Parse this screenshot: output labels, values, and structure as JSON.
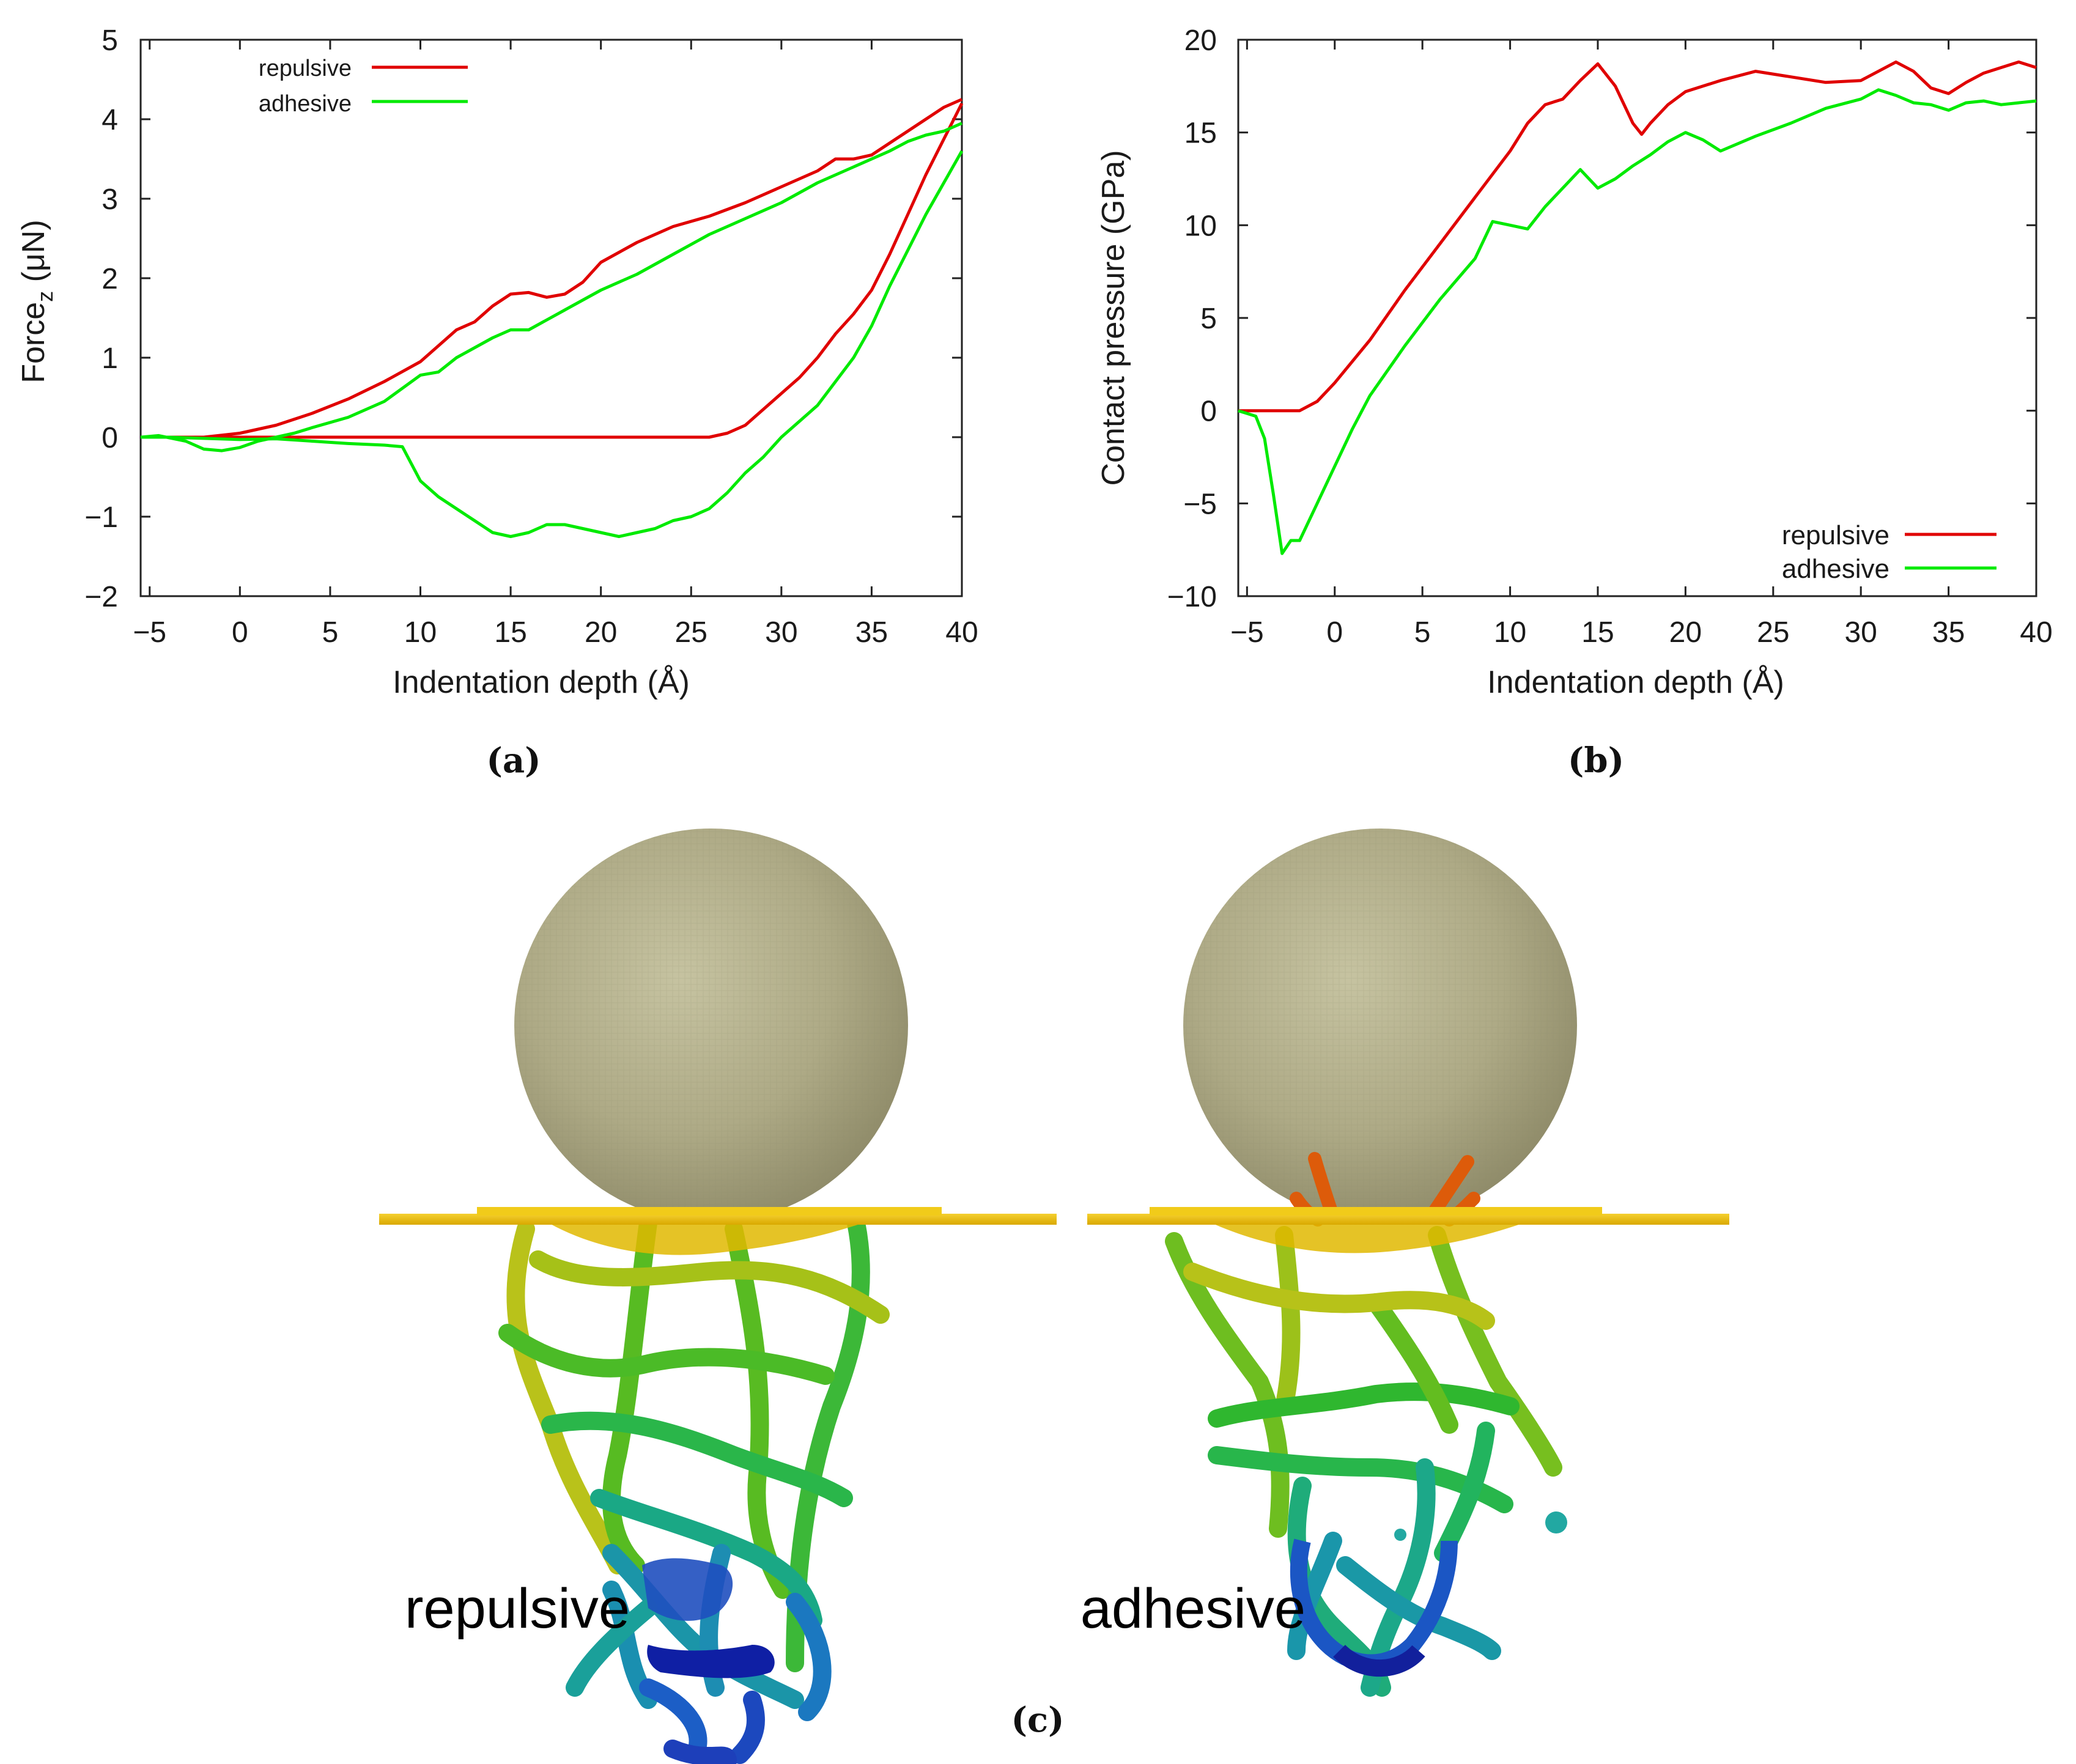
{
  "chart_data": [
    {
      "id": "a",
      "type": "line",
      "caption": "(a)",
      "xlabel": "Indentation depth (Å)",
      "ylabel_main": "Force",
      "ylabel_sub": "z",
      "ylabel_unit": " (μN)",
      "xlim": [
        -5.5,
        40
      ],
      "ylim": [
        -2,
        5
      ],
      "xticks": [
        -5,
        0,
        5,
        10,
        15,
        20,
        25,
        30,
        35,
        40
      ],
      "xtick_labels": [
        "−5",
        "0",
        "5",
        "10",
        "15",
        "20",
        "25",
        "30",
        "35",
        "40"
      ],
      "yticks": [
        -2,
        -1,
        0,
        1,
        2,
        3,
        4,
        5
      ],
      "ytick_labels": [
        "−2",
        "−1",
        "0",
        "1",
        "2",
        "3",
        "4",
        "5"
      ],
      "legend_position": "top-left",
      "series": [
        {
          "name": "repulsive",
          "color": "#e00000",
          "segments": [
            [
              [
                -5.5,
                0
              ],
              [
                -2,
                0
              ],
              [
                0,
                0.05
              ],
              [
                2,
                0.15
              ],
              [
                4,
                0.3
              ],
              [
                6,
                0.48
              ],
              [
                8,
                0.7
              ],
              [
                10,
                0.95
              ],
              [
                12,
                1.35
              ],
              [
                13,
                1.45
              ],
              [
                14,
                1.65
              ],
              [
                15,
                1.8
              ],
              [
                16,
                1.82
              ],
              [
                17,
                1.76
              ],
              [
                18,
                1.8
              ],
              [
                19,
                1.95
              ],
              [
                20,
                2.2
              ],
              [
                22,
                2.45
              ],
              [
                24,
                2.65
              ],
              [
                26,
                2.78
              ],
              [
                28,
                2.95
              ],
              [
                30,
                3.15
              ],
              [
                32,
                3.35
              ],
              [
                33,
                3.5
              ],
              [
                34,
                3.5
              ],
              [
                35,
                3.55
              ],
              [
                36,
                3.7
              ],
              [
                37,
                3.85
              ],
              [
                38,
                4.0
              ],
              [
                39,
                4.15
              ],
              [
                40,
                4.25
              ]
            ],
            [
              [
                -2,
                0
              ],
              [
                26,
                0
              ],
              [
                27,
                0.05
              ],
              [
                28,
                0.15
              ],
              [
                29,
                0.35
              ],
              [
                30,
                0.55
              ],
              [
                31,
                0.75
              ],
              [
                32,
                1.0
              ],
              [
                33,
                1.3
              ],
              [
                34,
                1.55
              ],
              [
                35,
                1.85
              ],
              [
                36,
                2.3
              ],
              [
                37,
                2.8
              ],
              [
                38,
                3.3
              ],
              [
                39,
                3.75
              ],
              [
                40,
                4.2
              ]
            ]
          ]
        },
        {
          "name": "adhesive",
          "color": "#00ea00",
          "segments": [
            [
              [
                -5.5,
                0
              ],
              [
                -4.5,
                0.02
              ],
              [
                -3,
                -0.05
              ],
              [
                -2,
                -0.15
              ],
              [
                -1,
                -0.17
              ],
              [
                0,
                -0.13
              ],
              [
                1,
                -0.05
              ],
              [
                2,
                0.0
              ],
              [
                3,
                0.05
              ],
              [
                4,
                0.12
              ],
              [
                6,
                0.25
              ],
              [
                8,
                0.45
              ],
              [
                10,
                0.78
              ],
              [
                11,
                0.82
              ],
              [
                12,
                1.0
              ],
              [
                14,
                1.25
              ],
              [
                15,
                1.35
              ],
              [
                16,
                1.35
              ],
              [
                18,
                1.6
              ],
              [
                20,
                1.85
              ],
              [
                22,
                2.05
              ],
              [
                24,
                2.3
              ],
              [
                26,
                2.55
              ],
              [
                28,
                2.75
              ],
              [
                30,
                2.95
              ],
              [
                32,
                3.2
              ],
              [
                34,
                3.4
              ],
              [
                36,
                3.6
              ],
              [
                37,
                3.72
              ],
              [
                38,
                3.8
              ],
              [
                39,
                3.85
              ],
              [
                40,
                3.95
              ]
            ],
            [
              [
                -5.5,
                0
              ],
              [
                -4,
                0
              ],
              [
                0,
                -0.03
              ],
              [
                2,
                -0.02
              ],
              [
                4,
                -0.05
              ],
              [
                6,
                -0.08
              ],
              [
                8,
                -0.1
              ],
              [
                9,
                -0.12
              ],
              [
                10,
                -0.55
              ],
              [
                11,
                -0.75
              ],
              [
                12,
                -0.9
              ],
              [
                13,
                -1.05
              ],
              [
                14,
                -1.2
              ],
              [
                15,
                -1.25
              ],
              [
                16,
                -1.2
              ],
              [
                17,
                -1.1
              ],
              [
                18,
                -1.1
              ],
              [
                19,
                -1.15
              ],
              [
                20,
                -1.2
              ],
              [
                21,
                -1.25
              ],
              [
                22,
                -1.2
              ],
              [
                23,
                -1.15
              ],
              [
                24,
                -1.05
              ],
              [
                25,
                -1.0
              ],
              [
                26,
                -0.9
              ],
              [
                27,
                -0.7
              ],
              [
                28,
                -0.45
              ],
              [
                29,
                -0.25
              ],
              [
                30,
                0.0
              ],
              [
                31,
                0.2
              ],
              [
                32,
                0.4
              ],
              [
                33,
                0.7
              ],
              [
                34,
                1.0
              ],
              [
                35,
                1.4
              ],
              [
                36,
                1.9
              ],
              [
                37,
                2.35
              ],
              [
                38,
                2.8
              ],
              [
                39,
                3.2
              ],
              [
                40,
                3.6
              ]
            ]
          ]
        }
      ]
    },
    {
      "id": "b",
      "type": "line",
      "caption": "(b)",
      "xlabel": "Indentation depth (Å)",
      "ylabel": "Contact pressure (GPa)",
      "xlim": [
        -5.5,
        40
      ],
      "ylim": [
        -10,
        20
      ],
      "xticks": [
        -5,
        0,
        5,
        10,
        15,
        20,
        25,
        30,
        35,
        40
      ],
      "xtick_labels": [
        "−5",
        "0",
        "5",
        "10",
        "15",
        "20",
        "25",
        "30",
        "35",
        "40"
      ],
      "yticks": [
        -10,
        -5,
        0,
        5,
        10,
        15,
        20
      ],
      "ytick_labels": [
        "−10",
        "−5",
        "0",
        "5",
        "10",
        "15",
        "20"
      ],
      "legend_position": "bottom-right",
      "series": [
        {
          "name": "repulsive",
          "color": "#e00000",
          "segments": [
            [
              [
                -5.5,
                0
              ],
              [
                -2,
                0
              ],
              [
                -1,
                0.5
              ],
              [
                0,
                1.5
              ],
              [
                2,
                3.8
              ],
              [
                4,
                6.5
              ],
              [
                6,
                9.0
              ],
              [
                8,
                11.5
              ],
              [
                10,
                14.0
              ],
              [
                11,
                15.5
              ],
              [
                12,
                16.5
              ],
              [
                13,
                16.8
              ],
              [
                14,
                17.8
              ],
              [
                15,
                18.7
              ],
              [
                16,
                17.5
              ],
              [
                17,
                15.5
              ],
              [
                17.5,
                14.9
              ],
              [
                18,
                15.5
              ],
              [
                19,
                16.5
              ],
              [
                20,
                17.2
              ],
              [
                22,
                17.8
              ],
              [
                24,
                18.3
              ],
              [
                26,
                18.0
              ],
              [
                28,
                17.7
              ],
              [
                30,
                17.8
              ],
              [
                32,
                18.8
              ],
              [
                33,
                18.3
              ],
              [
                34,
                17.4
              ],
              [
                35,
                17.1
              ],
              [
                36,
                17.7
              ],
              [
                37,
                18.2
              ],
              [
                38,
                18.5
              ],
              [
                39,
                18.8
              ],
              [
                40,
                18.5
              ]
            ]
          ]
        },
        {
          "name": "adhesive",
          "color": "#00ea00",
          "segments": [
            [
              [
                -5.5,
                0
              ],
              [
                -4.5,
                -0.3
              ],
              [
                -4,
                -1.5
              ],
              [
                -3.5,
                -4.5
              ],
              [
                -3,
                -7.7
              ],
              [
                -2.5,
                -7.0
              ],
              [
                -2,
                -7.0
              ],
              [
                -1,
                -5.0
              ],
              [
                0,
                -3.0
              ],
              [
                1,
                -1.0
              ],
              [
                2,
                0.8
              ],
              [
                4,
                3.5
              ],
              [
                6,
                6.0
              ],
              [
                8,
                8.2
              ],
              [
                9,
                10.2
              ],
              [
                10,
                10.0
              ],
              [
                11,
                9.8
              ],
              [
                12,
                11.0
              ],
              [
                13,
                12.0
              ],
              [
                14,
                13.0
              ],
              [
                15,
                12.0
              ],
              [
                16,
                12.5
              ],
              [
                17,
                13.2
              ],
              [
                18,
                13.8
              ],
              [
                19,
                14.5
              ],
              [
                20,
                15.0
              ],
              [
                21,
                14.6
              ],
              [
                22,
                14.0
              ],
              [
                24,
                14.8
              ],
              [
                26,
                15.5
              ],
              [
                28,
                16.3
              ],
              [
                30,
                16.8
              ],
              [
                31,
                17.3
              ],
              [
                32,
                17.0
              ],
              [
                33,
                16.6
              ],
              [
                34,
                16.5
              ],
              [
                35,
                16.2
              ],
              [
                36,
                16.6
              ],
              [
                37,
                16.7
              ],
              [
                38,
                16.5
              ],
              [
                39,
                16.6
              ],
              [
                40,
                16.7
              ]
            ]
          ]
        }
      ]
    }
  ],
  "panel_c": {
    "caption": "(c)",
    "left_label": "repulsive",
    "right_label": "adhesive"
  }
}
